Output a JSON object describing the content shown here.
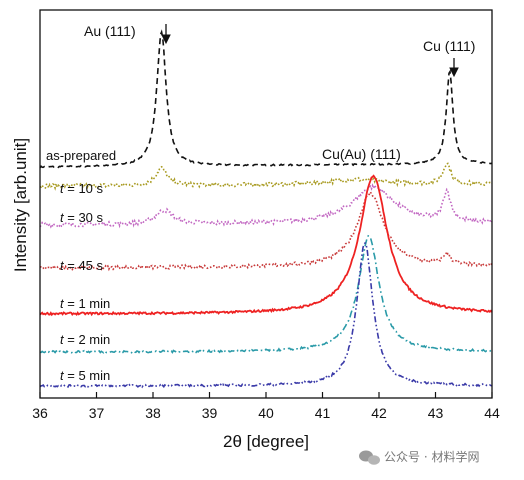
{
  "chart_data": {
    "type": "line",
    "xlabel": "2θ [degree]",
    "ylabel": "Intensity [arb.unit]",
    "xlim": [
      36,
      44
    ],
    "x_ticks": [
      "36",
      "37",
      "38",
      "39",
      "40",
      "41",
      "42",
      "43",
      "44"
    ],
    "y_ticks_shown": false,
    "grid": false,
    "series": [
      {
        "name": "as-prepared",
        "color": "#111111",
        "style": "dashed",
        "baseline": 0.05,
        "peaks": [
          [
            38.15,
            0.77,
            0.1
          ],
          [
            43.25,
            0.53,
            0.07
          ]
        ],
        "slope": 0.02,
        "noise": 0.004
      },
      {
        "name": "t = 10 s",
        "color": "#a89a20",
        "style": "dotted",
        "baseline": 0.0,
        "peaks": [
          [
            38.15,
            0.1,
            0.12
          ],
          [
            43.2,
            0.12,
            0.08
          ],
          [
            41.6,
            0.03,
            0.6
          ]
        ],
        "slope": 0.01,
        "noise": 0.012
      },
      {
        "name": "t = 30 s",
        "color": "#c268c2",
        "style": "dotted",
        "baseline": 0.0,
        "peaks": [
          [
            38.2,
            0.08,
            0.18
          ],
          [
            41.9,
            0.21,
            0.45
          ],
          [
            43.2,
            0.17,
            0.08
          ]
        ],
        "slope": 0.01,
        "noise": 0.012
      },
      {
        "name": "t = 45 s",
        "color": "#c83a3a",
        "style": "dotted",
        "baseline": 0.0,
        "peaks": [
          [
            41.85,
            0.42,
            0.28
          ],
          [
            43.2,
            0.06,
            0.08
          ]
        ],
        "slope": 0.01,
        "noise": 0.01
      },
      {
        "name": "t = 1 min",
        "color": "#ee2222",
        "style": "solid",
        "baseline": 0.0,
        "peaks": [
          [
            41.9,
            0.79,
            0.3
          ]
        ],
        "slope": 0.0,
        "noise": 0.006
      },
      {
        "name": "t = 2 min",
        "color": "#2a9aa8",
        "style": "dashdot",
        "baseline": 0.0,
        "peaks": [
          [
            41.82,
            0.66,
            0.22
          ]
        ],
        "slope": 0.0,
        "noise": 0.006
      },
      {
        "name": "t = 5 min",
        "color": "#3a3aa8",
        "style": "dashdotdot",
        "baseline": 0.0,
        "peaks": [
          [
            41.75,
            0.82,
            0.17
          ]
        ],
        "slope": 0.0,
        "noise": 0.006
      }
    ],
    "annotations": [
      {
        "text": "Au (111)",
        "x": 38.15,
        "arrow": true
      },
      {
        "text": "Cu (111)",
        "x": 43.25,
        "arrow": true
      },
      {
        "text": "Cu(Au) (111)",
        "x": 41.9,
        "arrow": false
      }
    ]
  },
  "series_labels": {
    "as_prepared": "as-prepared",
    "t10s_prefix": "t",
    "t10s_rest": " = 10 s",
    "t30s_prefix": "t",
    "t30s_rest": " = 30 s",
    "t45s_prefix": "t",
    "t45s_rest": " = 45 s",
    "t1min_prefix": "t",
    "t1min_rest": " = 1 min",
    "t2min_prefix": "t",
    "t2min_rest": " = 2 min",
    "t5min_prefix": "t",
    "t5min_rest": " = 5 min"
  },
  "watermark": {
    "text": "公众号 · 材料学网",
    "icon": "wechat-icon"
  }
}
